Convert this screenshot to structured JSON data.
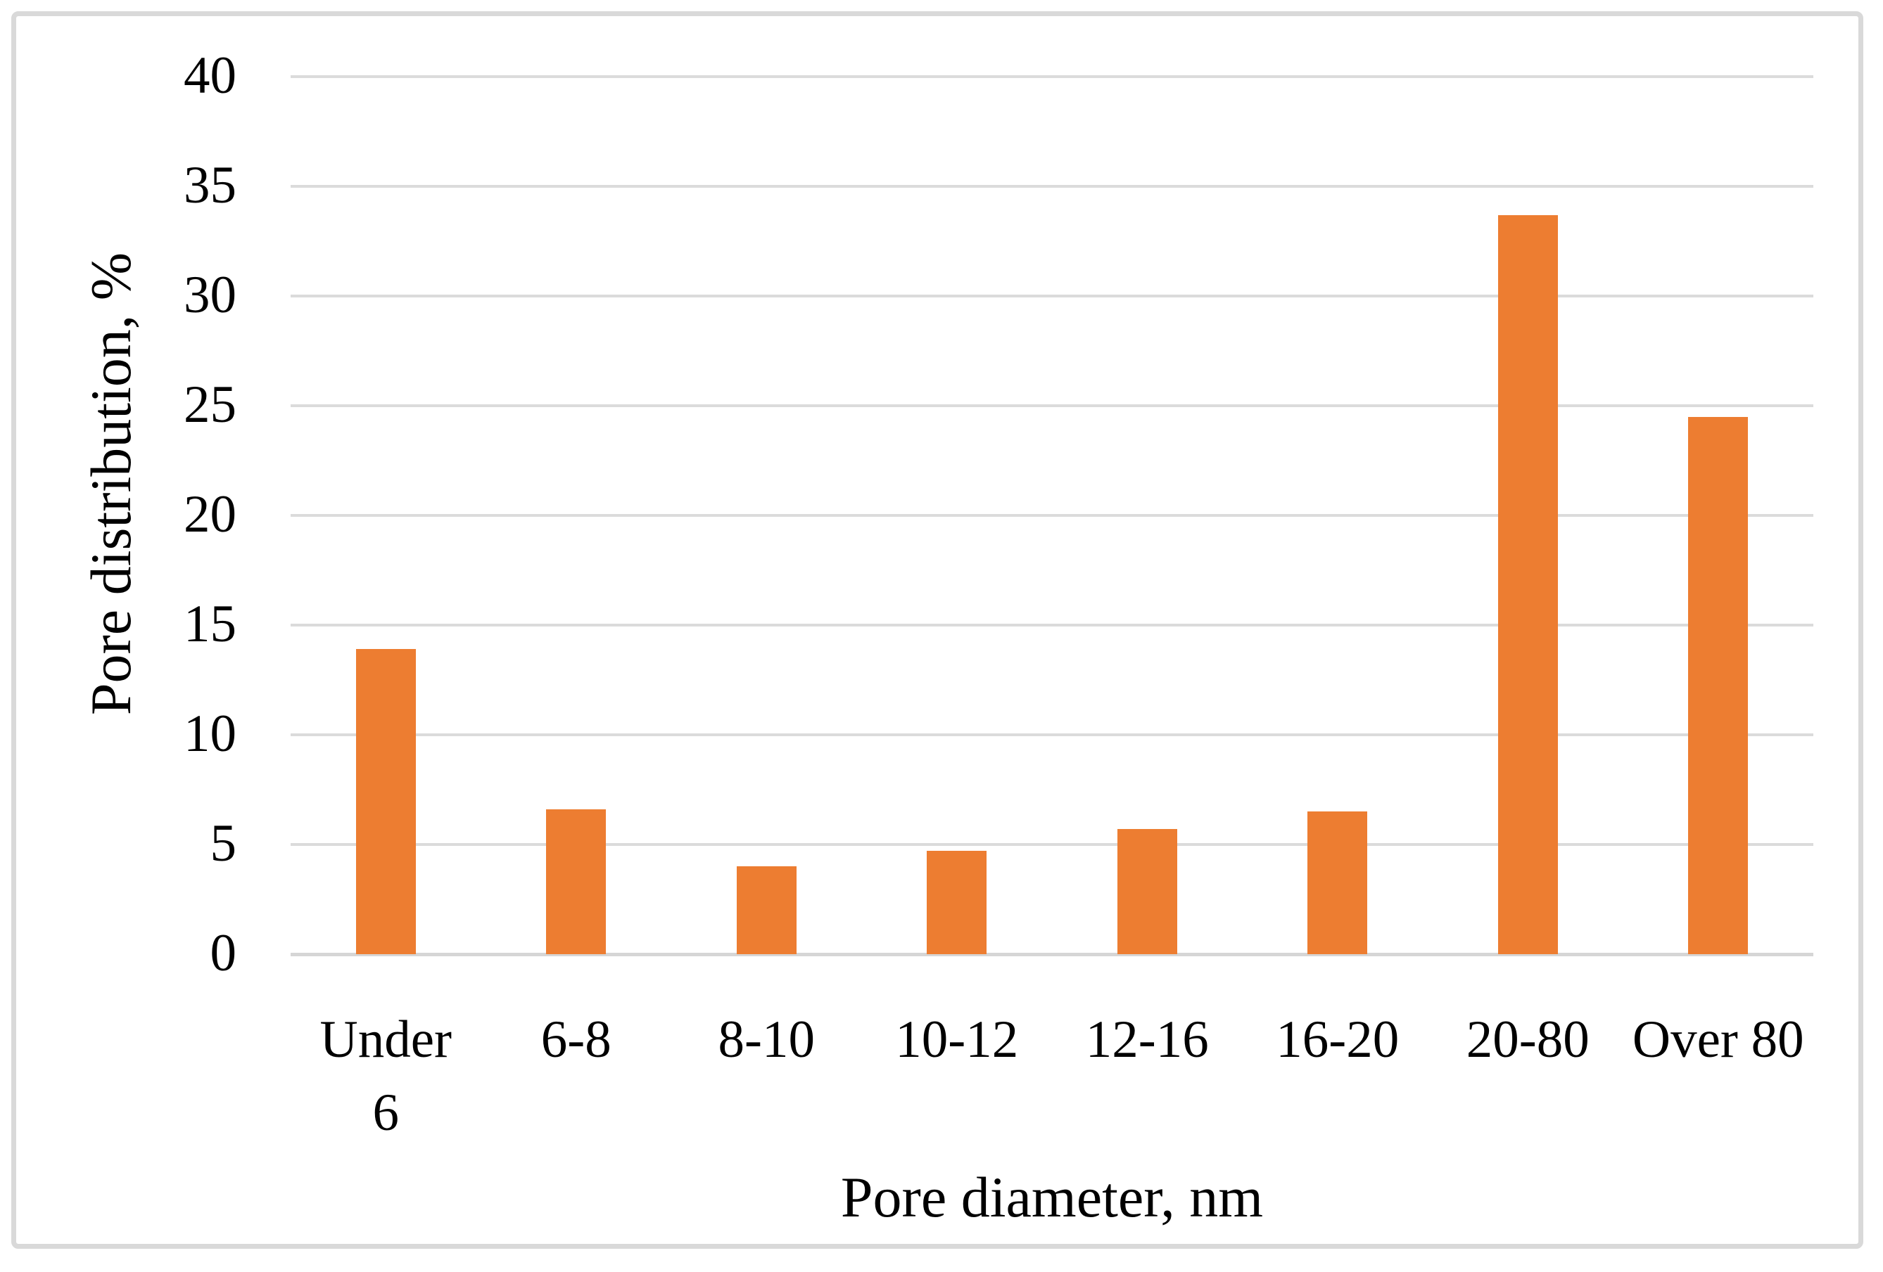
{
  "figure": {
    "background_color": "#ffffff",
    "border_color": "#d9d9d9"
  },
  "chart_data": {
    "type": "bar",
    "title": "",
    "categories": [
      "Under 6",
      "6-8",
      "8-10",
      "10-12",
      "12-16",
      "16-20",
      "20-80",
      "Over 80"
    ],
    "values": [
      13.9,
      6.6,
      4.0,
      4.7,
      5.7,
      6.5,
      33.7,
      24.5
    ],
    "xlabel": "Pore diameter, nm",
    "ylabel": "Pore distribution, %",
    "ylim": [
      0,
      40
    ],
    "yticks": [
      0,
      5,
      10,
      15,
      20,
      25,
      30,
      35,
      40
    ],
    "grid": "horizontal gridlines on",
    "legend": "none",
    "bar_color": "#ED7D31",
    "gridline_color": "#DBDBDB",
    "axis_line_color": "#D6D6D6",
    "text_color": "#000000"
  }
}
